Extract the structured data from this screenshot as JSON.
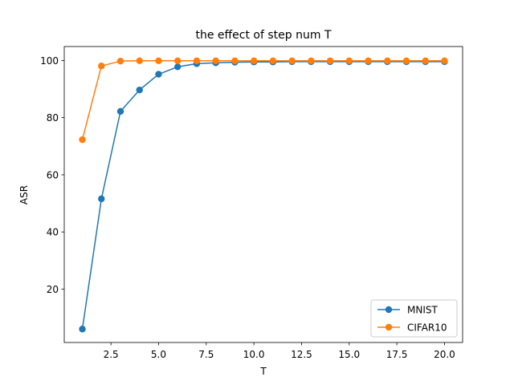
{
  "chart_data": {
    "type": "line",
    "title": "the effect of step num T",
    "xlabel": "T",
    "ylabel": "ASR",
    "x": [
      1,
      2,
      3,
      4,
      5,
      6,
      7,
      8,
      9,
      10,
      11,
      12,
      13,
      14,
      15,
      16,
      17,
      18,
      19,
      20
    ],
    "xlim": [
      0.05,
      20.95
    ],
    "ylim": [
      1.3,
      104.9
    ],
    "xticks": [
      2.5,
      5.0,
      7.5,
      10.0,
      12.5,
      15.0,
      17.5,
      20.0
    ],
    "xtick_labels": [
      "2.5",
      "5.0",
      "7.5",
      "10.0",
      "12.5",
      "15.0",
      "17.5",
      "20.0"
    ],
    "yticks": [
      20,
      40,
      60,
      80,
      100
    ],
    "ytick_labels": [
      "20",
      "40",
      "60",
      "80",
      "100"
    ],
    "grid": false,
    "legend": {
      "position": "lower-right"
    },
    "series": [
      {
        "name": "MNIST",
        "color": "#1f77b4",
        "marker": "circle",
        "values": [
          6.0,
          51.6,
          82.2,
          89.7,
          95.2,
          97.8,
          98.9,
          99.2,
          99.4,
          99.5,
          99.5,
          99.6,
          99.6,
          99.6,
          99.6,
          99.6,
          99.6,
          99.6,
          99.6,
          99.6
        ]
      },
      {
        "name": "CIFAR10",
        "color": "#ff7f0e",
        "marker": "circle",
        "values": [
          72.3,
          98.1,
          99.8,
          99.9,
          99.9,
          99.9,
          99.9,
          99.9,
          99.9,
          99.9,
          99.9,
          99.9,
          99.9,
          99.9,
          99.9,
          99.9,
          99.9,
          99.9,
          99.9,
          99.9
        ]
      }
    ]
  }
}
